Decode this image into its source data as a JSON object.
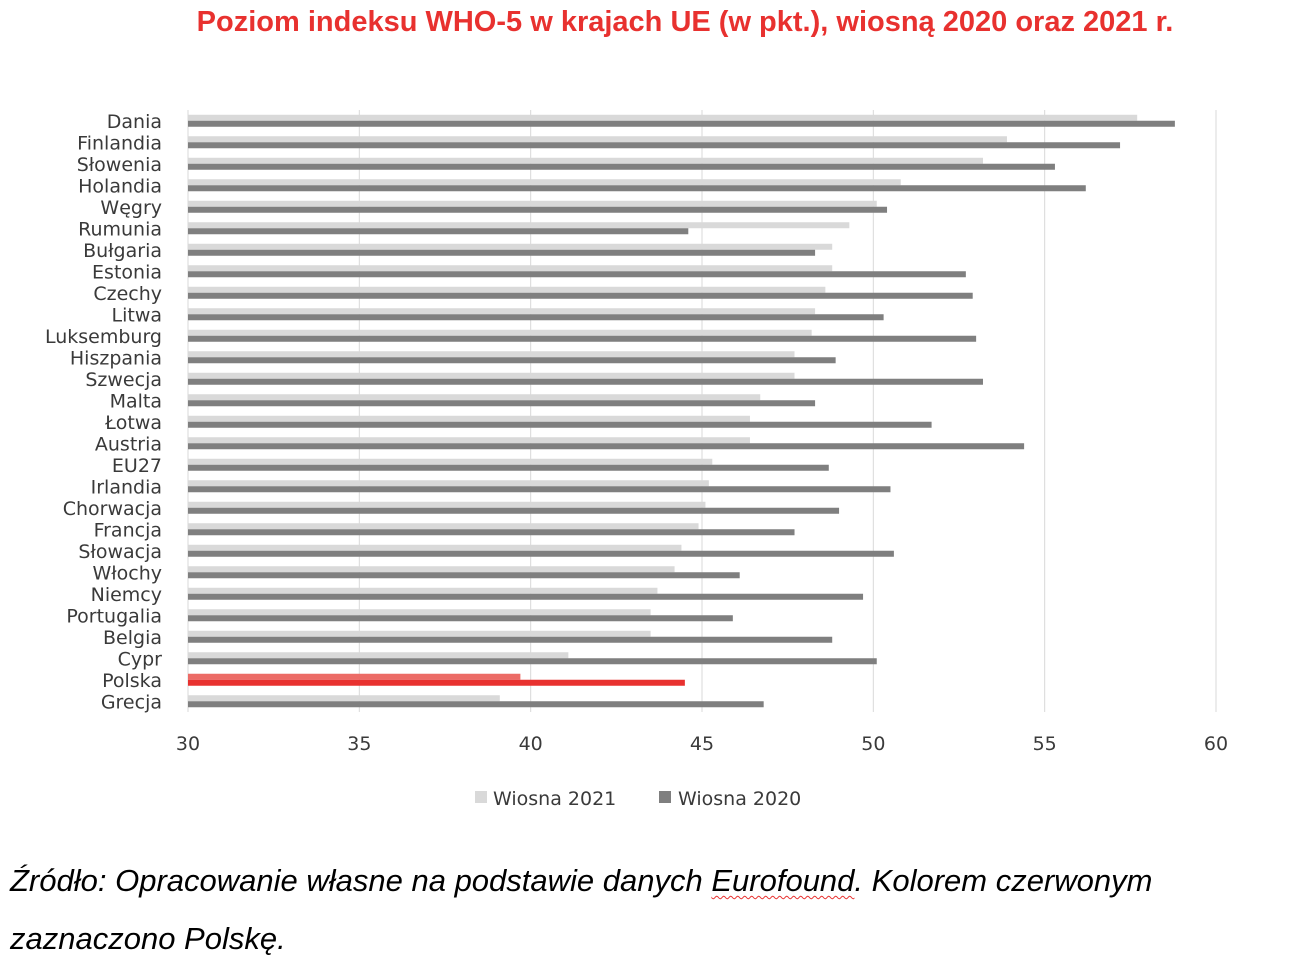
{
  "caption": {
    "before": "Źródło: Opracowanie własne na podstawie danych ",
    "link": "Eurofound",
    "after": ". Kolorem czerwonym zaznaczono Polskę."
  },
  "chart_data": {
    "type": "bar",
    "orientation": "horizontal",
    "title": "Poziom indeksu WHO-5 w krajach UE (w pkt.), wiosną 2020 oraz 2021 r.",
    "xlabel": "",
    "ylabel": "",
    "xlim": [
      30,
      60
    ],
    "ticks": [
      30,
      35,
      40,
      45,
      50,
      55,
      60
    ],
    "grid": "vertical",
    "legend": "bottom",
    "highlight": {
      "category": "Polska",
      "color_2021": "#ec6b66",
      "color_2020": "#e8312f"
    },
    "categories": [
      "Dania",
      "Finlandia",
      "Słowenia",
      "Holandia",
      "Węgry",
      "Rumunia",
      "Bułgaria",
      "Estonia",
      "Czechy",
      "Litwa",
      "Luksemburg",
      "Hiszpania",
      "Szwecja",
      "Malta",
      "Łotwa",
      "Austria",
      "EU27",
      "Irlandia",
      "Chorwacja",
      "Francja",
      "Słowacja",
      "Włochy",
      "Niemcy",
      "Portugalia",
      "Belgia",
      "Cypr",
      "Polska",
      "Grecja"
    ],
    "series": [
      {
        "name": "Wiosna 2021",
        "color": "#d9d9d9",
        "values": [
          57.7,
          53.9,
          53.2,
          50.8,
          50.1,
          49.3,
          48.8,
          48.8,
          48.6,
          48.3,
          48.2,
          47.7,
          47.7,
          46.7,
          46.4,
          46.4,
          45.3,
          45.2,
          45.1,
          44.9,
          44.4,
          44.2,
          43.7,
          43.5,
          43.5,
          41.1,
          39.7,
          39.1
        ]
      },
      {
        "name": "Wiosna 2020",
        "color": "#7f7f7f",
        "values": [
          58.8,
          57.2,
          55.3,
          56.2,
          50.4,
          44.6,
          48.3,
          52.7,
          52.9,
          50.3,
          53.0,
          48.9,
          53.2,
          48.3,
          51.7,
          54.4,
          48.7,
          50.5,
          49.0,
          47.7,
          50.6,
          46.1,
          49.7,
          45.9,
          48.8,
          50.1,
          44.5,
          46.8
        ]
      }
    ]
  }
}
